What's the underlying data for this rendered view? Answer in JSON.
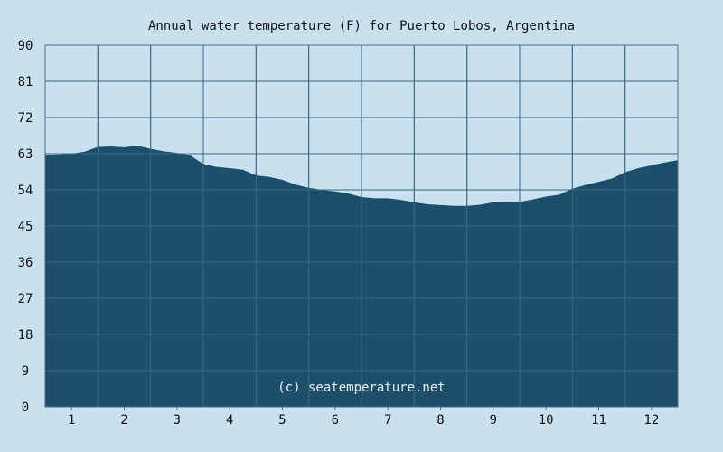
{
  "chart_data": {
    "type": "area",
    "title": "Annual water temperature (F) for Puerto Lobos, Argentina",
    "watermark": "(c) seatemperature.net",
    "xlabel": "",
    "ylabel": "",
    "ylim": [
      0,
      90
    ],
    "y_ticks": [
      "0",
      "9",
      "18",
      "27",
      "36",
      "45",
      "54",
      "63",
      "72",
      "81",
      "90"
    ],
    "x_ticks": [
      "1",
      "2",
      "3",
      "4",
      "5",
      "6",
      "7",
      "8",
      "9",
      "10",
      "11",
      "12"
    ],
    "xlim": [
      0.5,
      12.5
    ],
    "grid": true,
    "colors": {
      "background": "#c9e1ee",
      "fill": "#1e4f6a",
      "grid": "#4a6f8a"
    },
    "series": [
      {
        "x": [
          0.5,
          0.75,
          1.0,
          1.25,
          1.5,
          1.75,
          2.0,
          2.25,
          2.5,
          2.75,
          3.0,
          3.25,
          3.5,
          3.75,
          4.0,
          4.25,
          4.5,
          4.75,
          5.0,
          5.25,
          5.5,
          5.75,
          6.0,
          6.25,
          6.5,
          6.75,
          7.0,
          7.25,
          7.5,
          7.75,
          8.0,
          8.25,
          8.5,
          8.75,
          9.0,
          9.25,
          9.5,
          9.75,
          10.0,
          10.25,
          10.5,
          10.75,
          11.0,
          11.25,
          11.5,
          11.75,
          12.0,
          12.25,
          12.5
        ],
        "values": [
          62.5,
          62.8,
          63.0,
          63.5,
          64.7,
          64.8,
          64.6,
          65.0,
          64.2,
          63.6,
          63.2,
          62.6,
          60.4,
          59.7,
          59.4,
          59.0,
          57.6,
          57.2,
          56.5,
          55.3,
          54.5,
          54.0,
          53.6,
          53.1,
          52.2,
          51.9,
          51.9,
          51.5,
          50.9,
          50.4,
          50.2,
          50.0,
          50.0,
          50.3,
          50.9,
          51.1,
          51.0,
          51.6,
          52.3,
          52.8,
          54.3,
          55.2,
          56.0,
          56.8,
          58.4,
          59.4,
          60.1,
          60.8,
          61.4
        ]
      }
    ]
  }
}
